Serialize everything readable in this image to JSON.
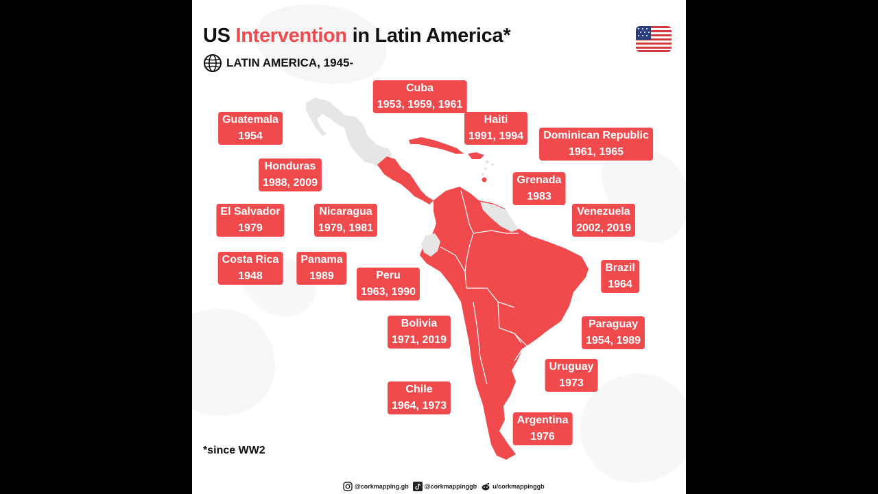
{
  "title": {
    "prefix": "US",
    "highlight": "Intervention",
    "suffix": "in Latin America*"
  },
  "subtitle": "LATIN AMERICA, 1945-",
  "icons": {
    "globe": "globe-icon",
    "flag": "us-flag-icon"
  },
  "colors": {
    "accent": "#f04a4d",
    "land": "#e6e6e6"
  },
  "countries": [
    {
      "id": "guatemala",
      "name": "Guatemala",
      "years": "1954"
    },
    {
      "id": "honduras",
      "name": "Honduras",
      "years": "1988, 2009"
    },
    {
      "id": "el-salvador",
      "name": "El Salvador",
      "years": "1979"
    },
    {
      "id": "nicaragua",
      "name": "Nicaragua",
      "years": "1979, 1981"
    },
    {
      "id": "costa-rica",
      "name": "Costa Rica",
      "years": "1948"
    },
    {
      "id": "panama",
      "name": "Panama",
      "years": "1989"
    },
    {
      "id": "cuba",
      "name": "Cuba",
      "years": "1953, 1959, 1961"
    },
    {
      "id": "haiti",
      "name": "Haiti",
      "years": "1991, 1994"
    },
    {
      "id": "dominican-republic",
      "name": "Dominican Republic",
      "years": "1961, 1965"
    },
    {
      "id": "grenada",
      "name": "Grenada",
      "years": "1983"
    },
    {
      "id": "venezuela",
      "name": "Venezuela",
      "years": "2002, 2019"
    },
    {
      "id": "peru",
      "name": "Peru",
      "years": "1963, 1990"
    },
    {
      "id": "brazil",
      "name": "Brazil",
      "years": "1964"
    },
    {
      "id": "bolivia",
      "name": "Bolivia",
      "years": "1971, 2019"
    },
    {
      "id": "paraguay",
      "name": "Paraguay",
      "years": "1954, 1989"
    },
    {
      "id": "uruguay",
      "name": "Uruguay",
      "years": "1973"
    },
    {
      "id": "chile",
      "name": "Chile",
      "years": "1964, 1973"
    },
    {
      "id": "argentina",
      "name": "Argentina",
      "years": "1976"
    }
  ],
  "footnote": "*since WW2",
  "social": {
    "instagram": "@corkmapping.gb",
    "tiktok": "@corkmappinggb",
    "reddit": "u/corkmappinggb"
  }
}
